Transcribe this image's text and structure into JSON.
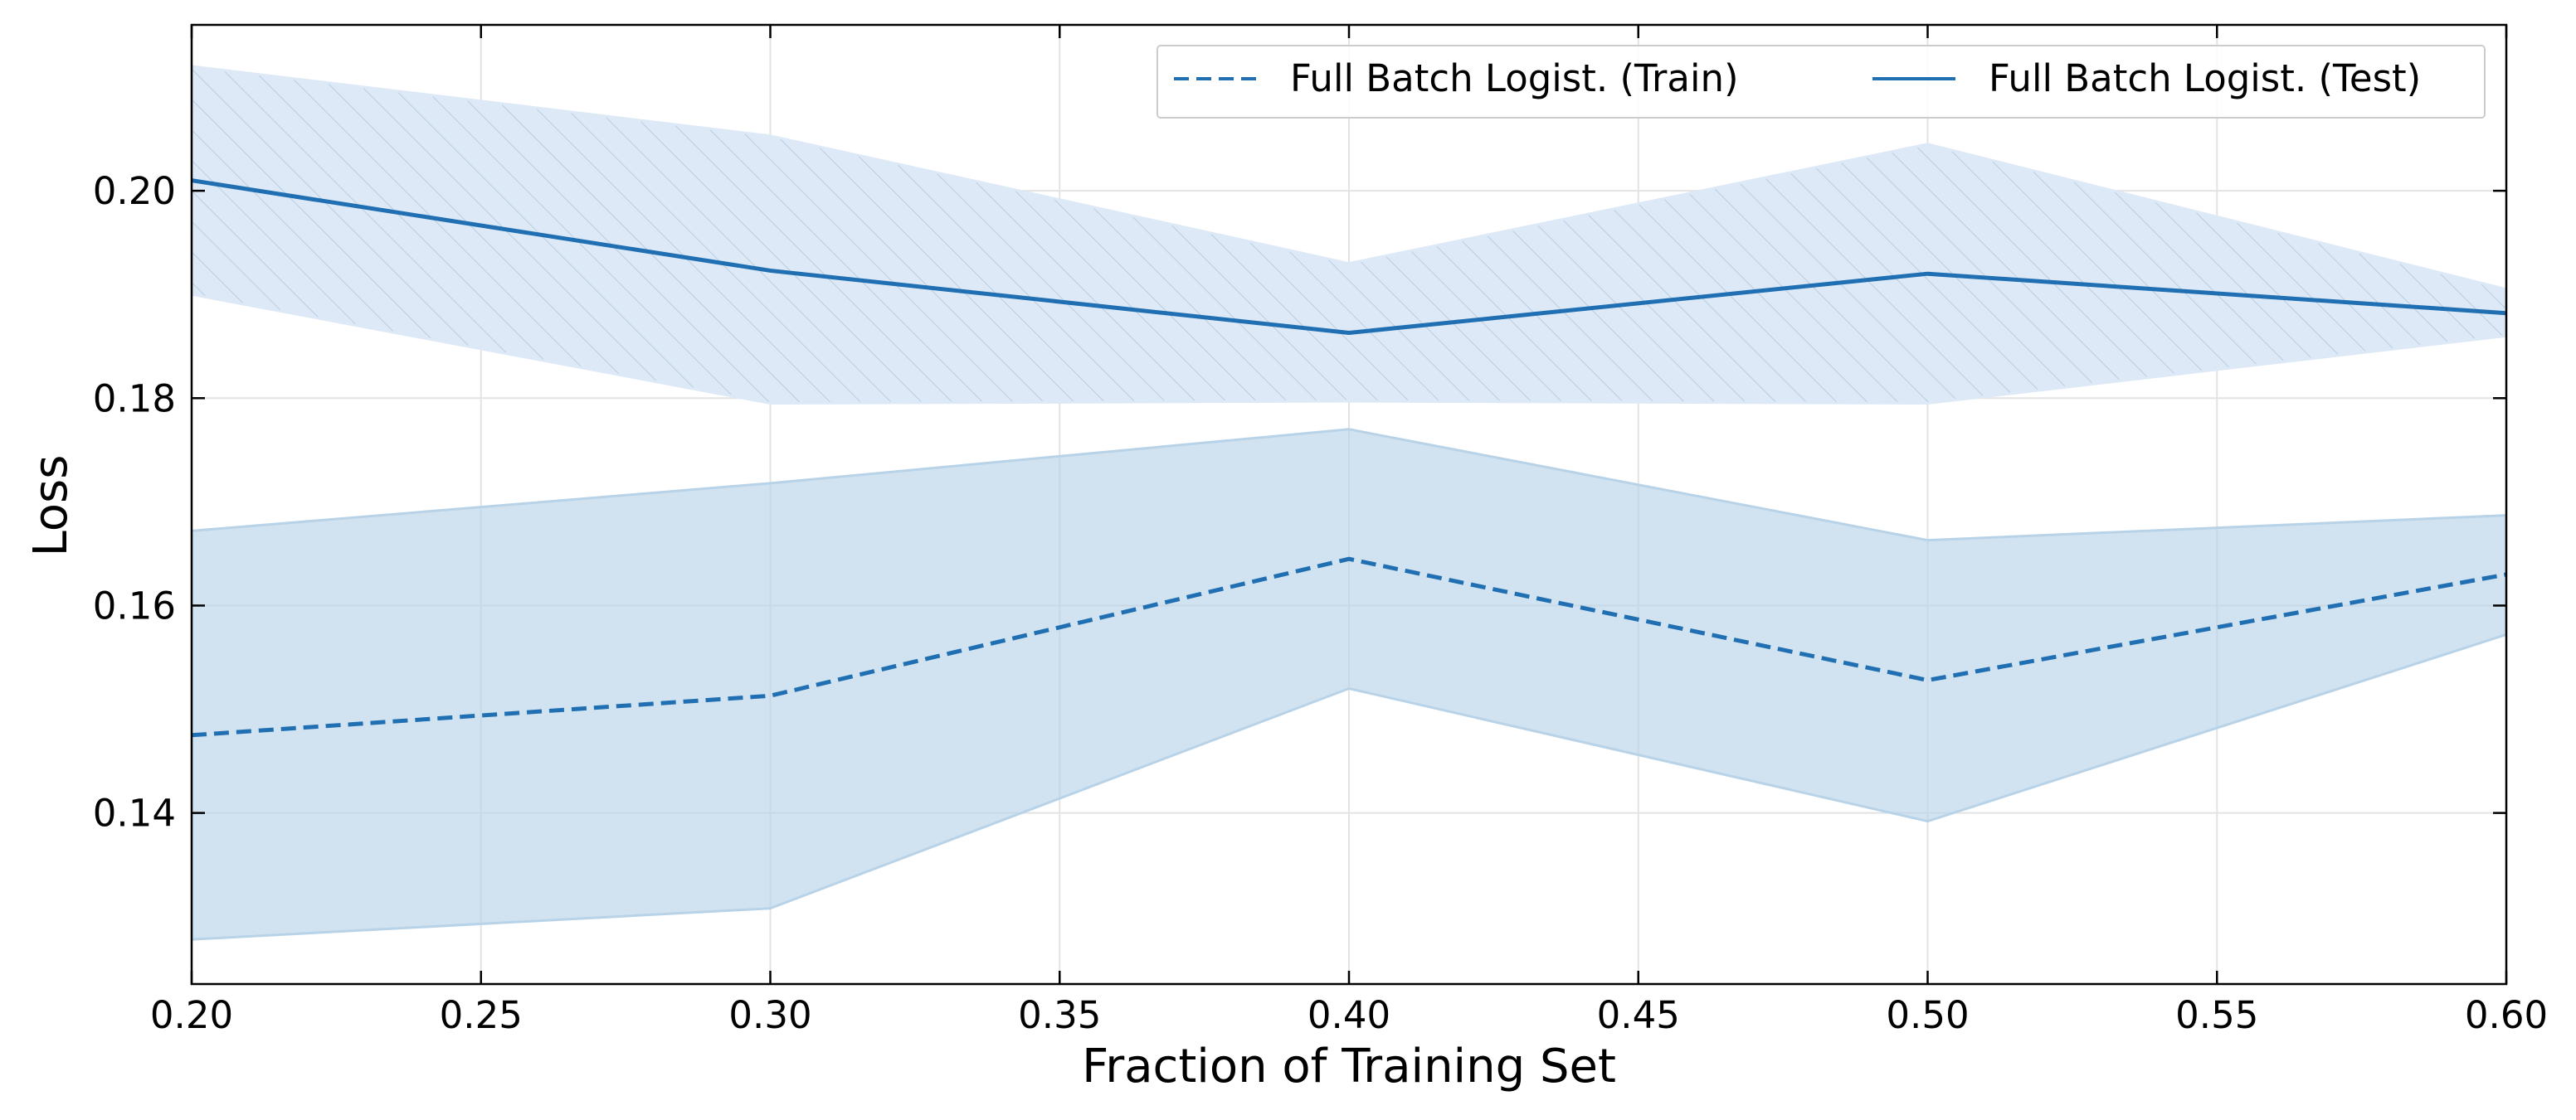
{
  "chart_data": {
    "type": "line",
    "xlabel": "Fraction of Training Set",
    "ylabel": "Loss",
    "xlim": [
      0.2,
      0.6
    ],
    "ylim": [
      0.1235,
      0.216
    ],
    "x_ticks": [
      0.2,
      0.25,
      0.3,
      0.35,
      0.4,
      0.45,
      0.5,
      0.55,
      0.6
    ],
    "x_tick_labels": [
      "0.20",
      "0.25",
      "0.30",
      "0.35",
      "0.40",
      "0.45",
      "0.50",
      "0.55",
      "0.60"
    ],
    "y_ticks": [
      0.14,
      0.16,
      0.18,
      0.2
    ],
    "y_tick_labels": [
      "0.14",
      "0.16",
      "0.18",
      "0.20"
    ],
    "grid": true,
    "legend_position": "top-right",
    "colors": {
      "series": "#1f6fb2",
      "train_band": "#b8d3e8",
      "test_band": "#dde9f6",
      "hatch": "#b9cde0",
      "grid": "#e3e3e3"
    },
    "series": [
      {
        "name": "Full Batch Logist. (Train)",
        "style": "dashed",
        "x": [
          0.2,
          0.3,
          0.4,
          0.5,
          0.6
        ],
        "y": [
          0.1475,
          0.1513,
          0.1645,
          0.1528,
          0.163
        ],
        "lower": [
          0.1278,
          0.1308,
          0.152,
          0.1392,
          0.1572
        ],
        "upper": [
          0.1672,
          0.1718,
          0.177,
          0.1663,
          0.1687
        ],
        "band_fill": "solid"
      },
      {
        "name": "Full Batch Logist. (Test)",
        "style": "solid",
        "x": [
          0.2,
          0.3,
          0.4,
          0.5,
          0.6
        ],
        "y": [
          0.201,
          0.1923,
          0.1863,
          0.192,
          0.1882
        ],
        "lower": [
          0.19,
          0.1795,
          0.1797,
          0.1795,
          0.186
        ],
        "upper": [
          0.212,
          0.2053,
          0.193,
          0.2045,
          0.1905
        ],
        "band_fill": "hatched"
      }
    ]
  }
}
